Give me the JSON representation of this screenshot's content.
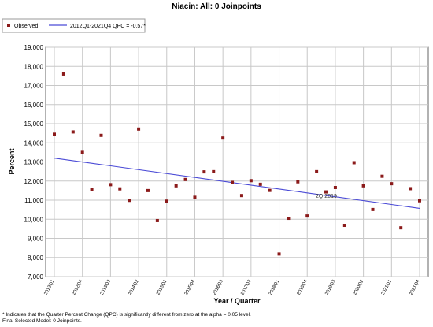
{
  "chart_data": {
    "type": "scatter",
    "title": "Niacin: All: 0 Joinpoints",
    "xlabel": "Year / Quarter",
    "ylabel": "Percent",
    "ylim": [
      7000,
      19000
    ],
    "yticks": [
      "7,000",
      "8,000",
      "9,000",
      "10,000",
      "11,000",
      "12,000",
      "13,000",
      "14,000",
      "15,000",
      "16,000",
      "17,000",
      "18,000",
      "19,000"
    ],
    "ytick_values": [
      7000,
      8000,
      9000,
      10000,
      11000,
      12000,
      13000,
      14000,
      15000,
      16000,
      17000,
      18000,
      19000
    ],
    "xtick_labels": [
      "2012Q1",
      "2012Q4",
      "2013Q3",
      "2014Q2",
      "2015Q1",
      "2015Q4",
      "2016Q3",
      "2017Q2",
      "2018Q1",
      "2018Q4",
      "2019Q3",
      "2020Q2",
      "2021Q1",
      "2021Q4"
    ],
    "grid": true,
    "legend_position": "top-left",
    "series": [
      {
        "name": "Observed",
        "color": "#8b1a1a",
        "marker": "square",
        "x": [
          "2012Q1",
          "2012Q2",
          "2012Q3",
          "2012Q4",
          "2013Q1",
          "2013Q2",
          "2013Q3",
          "2013Q4",
          "2014Q1",
          "2014Q2",
          "2014Q3",
          "2014Q4",
          "2015Q1",
          "2015Q2",
          "2015Q3",
          "2015Q4",
          "2016Q1",
          "2016Q2",
          "2016Q3",
          "2016Q4",
          "2017Q1",
          "2017Q2",
          "2017Q3",
          "2017Q4",
          "2018Q1",
          "2018Q2",
          "2018Q3",
          "2018Q4",
          "2019Q1",
          "2019Q2",
          "2019Q3",
          "2019Q4",
          "2020Q1",
          "2020Q2",
          "2020Q3",
          "2020Q4",
          "2021Q1",
          "2021Q2",
          "2021Q3",
          "2021Q4"
        ],
        "values": [
          14450,
          17600,
          14570,
          13500,
          11570,
          14390,
          11810,
          11590,
          10990,
          14720,
          11500,
          9930,
          10950,
          11750,
          12080,
          11150,
          12480,
          12490,
          14250,
          11930,
          11240,
          12020,
          11830,
          11510,
          8180,
          10050,
          11960,
          10170,
          12490,
          11430,
          11660,
          9680,
          12960,
          11750,
          10510,
          12250,
          11860,
          9550,
          11600,
          10970
        ]
      },
      {
        "name": "2012Q1-2021Q4 QPC = -0.57*",
        "color": "#4a4ad6",
        "type": "line",
        "x": [
          "2012Q1",
          "2021Q4"
        ],
        "values": [
          13200,
          10570
        ]
      }
    ],
    "annotations": [
      {
        "text": "2Q 2019",
        "x": "2019Q2",
        "y": 11250
      }
    ],
    "footnotes": [
      "* Indicates that the Quarter Percent Change (QPC) is significantly different from zero at the alpha = 0.05 level.",
      "Final Selected Model: 0 Joinpoints."
    ]
  }
}
